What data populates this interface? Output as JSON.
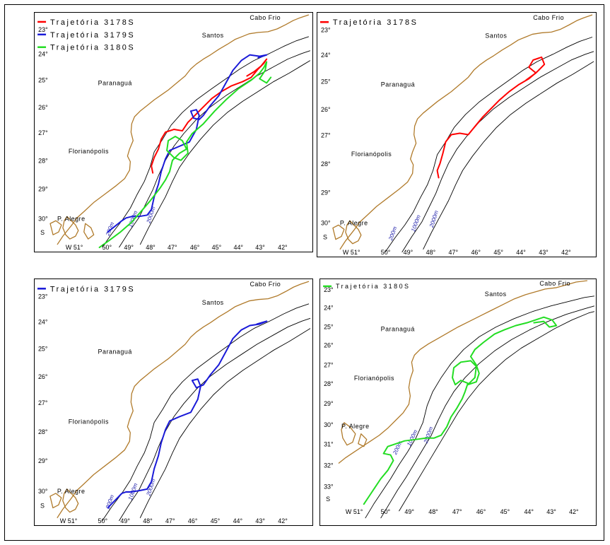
{
  "panels": [
    {
      "legend": [
        {
          "label": "Trajetória 3178S",
          "color": "#ff0000"
        },
        {
          "label": "Trajetória 3179S",
          "color": "#1a1ad8"
        },
        {
          "label": "Trajetória 3180S",
          "color": "#22dd22"
        }
      ],
      "lat_labels": [
        "23°",
        "24°",
        "25°",
        "26°",
        "27°",
        "28°",
        "29°",
        "30°"
      ],
      "lon_labels": [
        "W 51°",
        "50°",
        "49°",
        "48°",
        "47°",
        "46°",
        "45°",
        "44°",
        "43°",
        "42°"
      ],
      "south": "S",
      "places": {
        "cabo_frio": "Cabo Frio",
        "santos": "Santos",
        "paranagua": "Paranaguá",
        "florianopolis": "Florianópolis",
        "porto_alegre": "P. Alegre"
      },
      "isobaths": [
        "200m",
        "1000m",
        "2000m"
      ]
    },
    {
      "legend": [
        {
          "label": "Trajetória 3178S",
          "color": "#ff0000"
        }
      ],
      "lat_labels": [
        "23°",
        "24°",
        "25°",
        "26°",
        "27°",
        "28°",
        "29°",
        "30°"
      ],
      "lon_labels": [
        "W 51°",
        "50°",
        "49°",
        "48°",
        "47°",
        "46°",
        "45°",
        "44°",
        "43°",
        "42°"
      ],
      "south": "S",
      "places": {
        "cabo_frio": "Cabo Frio",
        "santos": "Santos",
        "paranagua": "Paranaguá",
        "florianopolis": "Florianópolis",
        "porto_alegre": "P. Alegre"
      },
      "isobaths": [
        "200m",
        "1000m",
        "2000m"
      ]
    },
    {
      "legend": [
        {
          "label": "Trajetória 3179S",
          "color": "#1a1ad8"
        }
      ],
      "lat_labels": [
        "23°",
        "24°",
        "25°",
        "26°",
        "27°",
        "28°",
        "29°",
        "30°"
      ],
      "lon_labels": [
        "W 51°",
        "50°",
        "49°",
        "48°",
        "47°",
        "46°",
        "45°",
        "44°",
        "43°",
        "42°"
      ],
      "south": "S",
      "places": {
        "cabo_frio": "Cabo Frio",
        "santos": "Santos",
        "paranagua": "Paranaguá",
        "florianopolis": "Florianópolis",
        "porto_alegre": "P. Alegre"
      },
      "isobaths": [
        "200m",
        "1000m",
        "2000m"
      ]
    },
    {
      "legend": [
        {
          "label": "Trajetória 3180S",
          "color": "#22dd22"
        }
      ],
      "lat_labels": [
        "23°",
        "24°",
        "25°",
        "26°",
        "27°",
        "28°",
        "29°",
        "30°",
        "31°",
        "32°",
        "33°"
      ],
      "lon_labels": [
        "W 51°",
        "50°",
        "49°",
        "48°",
        "47°",
        "46°",
        "45°",
        "44°",
        "43°",
        "42°"
      ],
      "south": "S",
      "places": {
        "cabo_frio": "Cabo Frio",
        "santos": "Santos",
        "paranagua": "Paranaguá",
        "florianopolis": "Florianópolis",
        "porto_alegre": "P. Alegre"
      },
      "isobaths": [
        "200m",
        "1000m",
        "2000m"
      ]
    }
  ],
  "colors": {
    "coast": "#b07a2a",
    "isobath": "#000000",
    "isobath_label": "#1a1aa8"
  }
}
